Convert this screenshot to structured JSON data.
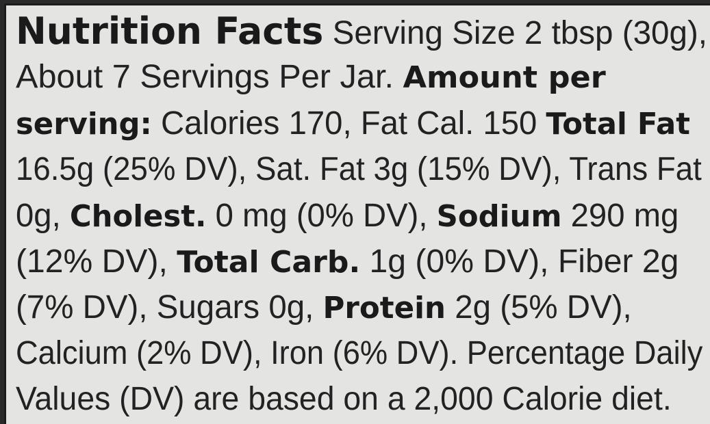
{
  "label": {
    "lines": [
      [
        {
          "text": "Nutrition Facts",
          "bold": true,
          "title": true
        },
        {
          "text": " Serving Size 2 tbsp (30g),"
        }
      ],
      [
        {
          "text": "About 7 Servings Per Jar. "
        },
        {
          "text": "Amount per",
          "bold": true
        }
      ],
      [
        {
          "text": "serving:",
          "bold": true
        },
        {
          "text": " Calories 170, Fat Cal. 150 "
        },
        {
          "text": "Total Fat",
          "bold": true
        }
      ],
      [
        {
          "text": "16.5g (25% DV), Sat. Fat 3g (15% DV), Trans Fat"
        }
      ],
      [
        {
          "text": "0g, "
        },
        {
          "text": "Cholest.",
          "bold": true
        },
        {
          "text": " 0 mg (0% DV), "
        },
        {
          "text": "Sodium",
          "bold": true
        },
        {
          "text": " 290 mg"
        }
      ],
      [
        {
          "text": "(12% DV), "
        },
        {
          "text": "Total Carb.",
          "bold": true
        },
        {
          "text": " 1g (0% DV), Fiber 2g"
        }
      ],
      [
        {
          "text": "(7% DV), Sugars 0g, "
        },
        {
          "text": "Protein",
          "bold": true
        },
        {
          "text": " 2g (5% DV),"
        }
      ],
      [
        {
          "text": "Calcium (2% DV), Iron (6% DV). Percentage Daily"
        }
      ],
      [
        {
          "text": "Values (DV) are based on a 2,000 Calorie diet."
        }
      ]
    ]
  }
}
